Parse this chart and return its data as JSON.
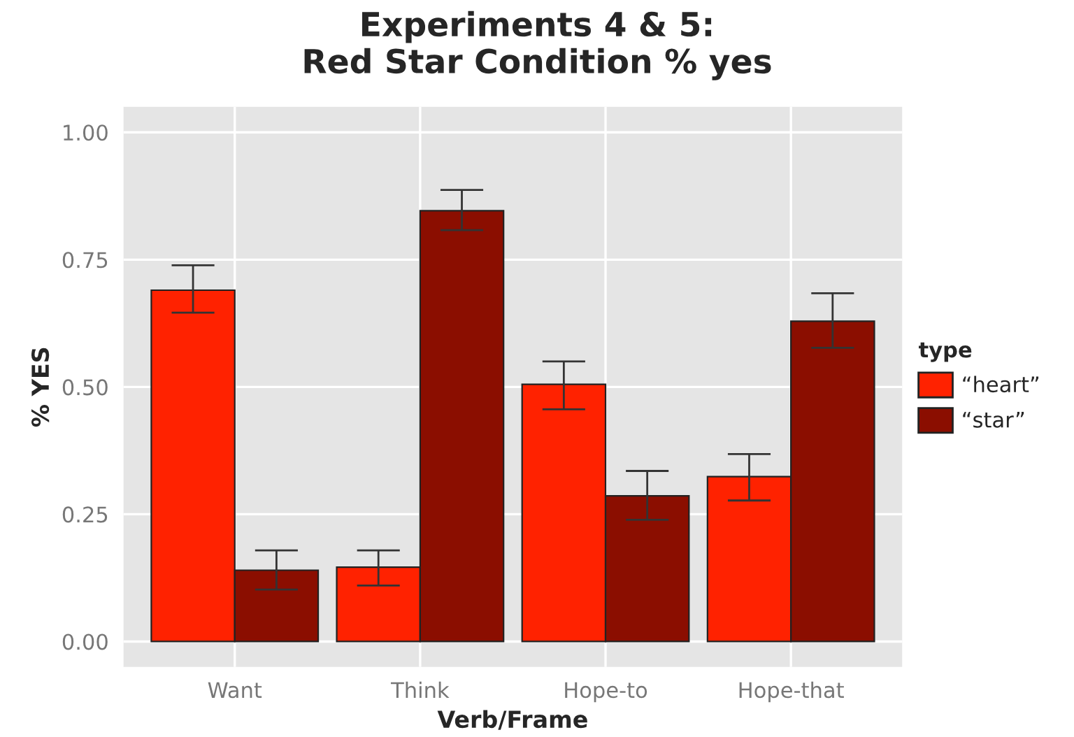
{
  "chart_data": {
    "type": "bar",
    "title": "Experiments 4 & 5:\nRed Star Condition % yes",
    "xlabel": "Verb/Frame",
    "ylabel": "% YES",
    "legend_title": "type",
    "categories": [
      "Want",
      "Think",
      "Hope-to",
      "Hope-that"
    ],
    "series": [
      {
        "name": "“heart”",
        "color": "#ff2200",
        "values": [
          0.69,
          0.146,
          0.505,
          0.324
        ],
        "errors": [
          [
            0.646,
            0.739
          ],
          [
            0.11,
            0.179
          ],
          [
            0.456,
            0.55
          ],
          [
            0.277,
            0.368
          ]
        ]
      },
      {
        "name": "“star”",
        "color": "#8b0e00",
        "values": [
          0.14,
          0.846,
          0.286,
          0.629
        ],
        "errors": [
          [
            0.102,
            0.179
          ],
          [
            0.808,
            0.887
          ],
          [
            0.239,
            0.335
          ],
          [
            0.577,
            0.684
          ]
        ]
      }
    ],
    "ylim": [
      -0.05,
      1.05
    ],
    "yticks": [
      {
        "value": 0,
        "label": "0.00"
      },
      {
        "value": 0.25,
        "label": "0.25"
      },
      {
        "value": 0.5,
        "label": "0.50"
      },
      {
        "value": 0.75,
        "label": "0.75"
      },
      {
        "value": 1,
        "label": "1.00"
      }
    ],
    "grid": true,
    "legend": "right"
  }
}
